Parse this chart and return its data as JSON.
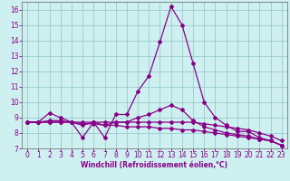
{
  "xlabel": "Windchill (Refroidissement éolien,°C)",
  "bg_color": "#cff0f0",
  "line_color": "#880088",
  "grid_color": "#99cccc",
  "xlim": [
    -0.5,
    23.5
  ],
  "ylim": [
    7.0,
    16.5
  ],
  "xticks": [
    0,
    1,
    2,
    3,
    4,
    5,
    6,
    7,
    8,
    9,
    10,
    11,
    12,
    13,
    14,
    15,
    16,
    17,
    18,
    19,
    20,
    21,
    22,
    23
  ],
  "yticks": [
    7,
    8,
    9,
    10,
    11,
    12,
    13,
    14,
    15,
    16
  ],
  "line1_x": [
    0,
    1,
    2,
    3,
    4,
    5,
    6,
    7,
    8,
    9,
    10,
    11,
    12,
    13,
    14,
    15,
    16,
    17,
    18,
    19,
    20,
    21,
    22,
    23
  ],
  "line1_y": [
    8.7,
    8.7,
    9.3,
    9.0,
    8.7,
    7.7,
    8.7,
    7.7,
    9.2,
    9.2,
    10.7,
    11.7,
    13.9,
    16.2,
    15.0,
    12.5,
    10.0,
    9.0,
    8.5,
    8.1,
    8.1,
    7.7,
    7.5,
    7.2
  ],
  "line2_x": [
    0,
    1,
    2,
    3,
    4,
    5,
    6,
    7,
    8,
    9,
    10,
    11,
    12,
    13,
    14,
    15,
    16,
    17,
    18,
    19,
    20,
    21,
    22,
    23
  ],
  "line2_y": [
    8.7,
    8.7,
    8.7,
    8.7,
    8.7,
    8.7,
    8.7,
    8.7,
    8.7,
    8.7,
    8.7,
    8.7,
    8.7,
    8.7,
    8.7,
    8.7,
    8.6,
    8.5,
    8.4,
    8.3,
    8.2,
    8.0,
    7.8,
    7.5
  ],
  "line3_x": [
    0,
    1,
    2,
    3,
    4,
    5,
    6,
    7,
    8,
    9,
    10,
    11,
    12,
    13,
    14,
    15,
    16,
    17,
    18,
    19,
    20,
    21,
    22,
    23
  ],
  "line3_y": [
    8.7,
    8.7,
    8.7,
    8.7,
    8.7,
    8.6,
    8.6,
    8.5,
    8.5,
    8.4,
    8.4,
    8.4,
    8.3,
    8.3,
    8.2,
    8.2,
    8.1,
    8.0,
    7.9,
    7.8,
    7.7,
    7.6,
    7.5,
    7.2
  ],
  "line4_x": [
    0,
    1,
    2,
    3,
    4,
    5,
    6,
    7,
    8,
    9,
    10,
    11,
    12,
    13,
    14,
    15,
    16,
    17,
    18,
    19,
    20,
    21,
    22,
    23
  ],
  "line4_y": [
    8.7,
    8.7,
    8.8,
    8.8,
    8.7,
    8.5,
    8.7,
    8.5,
    8.7,
    8.7,
    9.0,
    9.2,
    9.5,
    9.8,
    9.5,
    8.8,
    8.4,
    8.2,
    8.0,
    7.9,
    7.8,
    7.6,
    7.5,
    7.2
  ],
  "xlabel_fontsize": 5.5,
  "tick_fontsize": 5.5,
  "marker_size": 2.0,
  "line_width": 0.9
}
